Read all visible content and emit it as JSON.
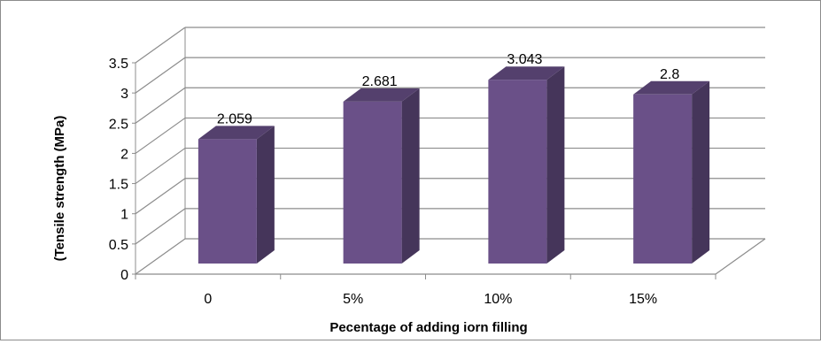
{
  "chart_data": {
    "type": "bar",
    "style": "3d-column",
    "categories": [
      "0",
      "5%",
      "10%",
      "15%"
    ],
    "values": [
      2.059,
      2.681,
      3.043,
      2.8
    ],
    "data_labels": [
      "2.059",
      "2.681",
      "3.043",
      "2.8"
    ],
    "xlabel": "Pecentage of adding iorn filling",
    "ylabel": "(Tensile strength  (MPa)",
    "ylim": [
      0,
      3.5
    ],
    "y_ticks": [
      "0",
      "0.5",
      "1",
      "1.5",
      "2",
      "2.5",
      "3",
      "3.5"
    ],
    "grid": true,
    "legend": "none",
    "colors": {
      "bar_front": "#6a5088",
      "bar_side": "#45355a",
      "bar_top": "#54406d",
      "gridline": "#8c8c8c"
    }
  }
}
